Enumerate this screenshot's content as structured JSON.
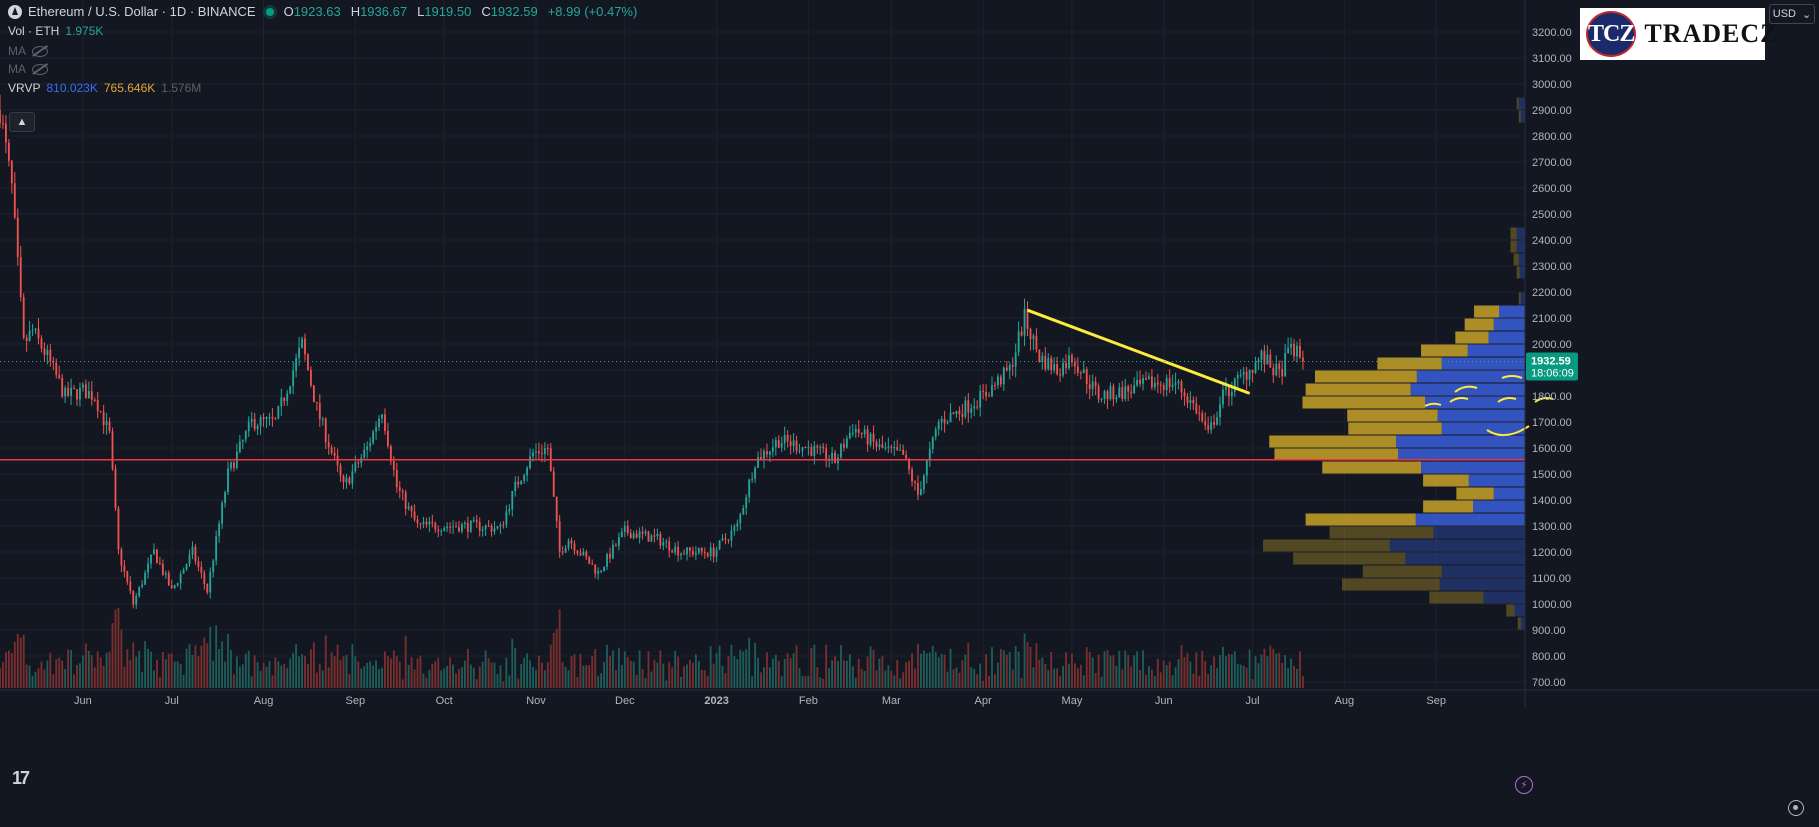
{
  "header": {
    "symbol": "Ethereum / U.S. Dollar · 1D · BINANCE",
    "o_label": "O",
    "o_value": "1923.63",
    "h_label": "H",
    "h_value": "1936.67",
    "l_label": "L",
    "l_value": "1919.50",
    "c_label": "C",
    "c_value": "1932.59",
    "change": "+8.99 (+0.47%)"
  },
  "indicators": {
    "vol_label": "Vol · ETH",
    "vol_value": "1.975K",
    "ma1_label": "MA",
    "ma2_label": "MA",
    "vrvp_label": "VRVP",
    "vrvp_up": "810.023K",
    "vrvp_down": "765.646K",
    "vrvp_total": "1.576M"
  },
  "logo": {
    "badge": "TCZ",
    "text": "TRADECZ"
  },
  "currency": "USD",
  "last_price": {
    "value": "1932.59",
    "countdown": "18:06:09"
  },
  "colors": {
    "background": "#131722",
    "grid": "#1e222d",
    "up": "#26a69a",
    "down": "#ef5350",
    "vol_up": "#1f5d58",
    "vol_down": "#7a2f2f",
    "vp_up": "#3a5fd9",
    "vp_down": "#c9a227",
    "trendline": "#ffeb3b",
    "support": "#f23645"
  },
  "icons": {
    "symbol": "ethereum-icon",
    "visibility": "eye-off-icon",
    "collapse": "chevron-up-icon",
    "brand": "tradingview-logo-icon",
    "settings": "gear-icon",
    "flash": "lightning-icon"
  },
  "chart_data": {
    "type": "candlestick",
    "ylim": [
      650,
      3250
    ],
    "yticks": [
      "700.00",
      "800.00",
      "900.00",
      "1000.00",
      "1100.00",
      "1200.00",
      "1300.00",
      "1400.00",
      "1500.00",
      "1600.00",
      "1700.00",
      "1800.00",
      "1900.00",
      "2000.00",
      "2100.00",
      "2200.00",
      "2300.00",
      "2400.00",
      "2500.00",
      "2600.00",
      "2700.00",
      "2800.00",
      "2900.00",
      "3000.00",
      "3100.00",
      "3200.00"
    ],
    "xticks": [
      {
        "label": "Jun",
        "date": "2022-06-01"
      },
      {
        "label": "Jul",
        "date": "2022-07-01"
      },
      {
        "label": "Aug",
        "date": "2022-08-01"
      },
      {
        "label": "Sep",
        "date": "2022-09-01"
      },
      {
        "label": "Oct",
        "date": "2022-10-01"
      },
      {
        "label": "Nov",
        "date": "2022-11-01"
      },
      {
        "label": "Dec",
        "date": "2022-12-01"
      },
      {
        "label": "2023",
        "date": "2023-01-01"
      },
      {
        "label": "Feb",
        "date": "2023-02-01"
      },
      {
        "label": "Mar",
        "date": "2023-03-01"
      },
      {
        "label": "Apr",
        "date": "2023-04-01"
      },
      {
        "label": "May",
        "date": "2023-05-01"
      },
      {
        "label": "Jun",
        "date": "2023-06-01"
      },
      {
        "label": "Jul",
        "date": "2023-07-01"
      },
      {
        "label": "Aug",
        "date": "2023-08-01"
      },
      {
        "label": "Sep",
        "date": "2023-09-01"
      }
    ],
    "x_range": [
      "2022-05-04",
      "2023-10-01"
    ],
    "price_keypoints": [
      [
        "2022-05-04",
        2900
      ],
      [
        "2022-05-08",
        2600
      ],
      [
        "2022-05-12",
        2000
      ],
      [
        "2022-05-15",
        2050
      ],
      [
        "2022-05-20",
        1950
      ],
      [
        "2022-05-26",
        1800
      ],
      [
        "2022-06-01",
        1820
      ],
      [
        "2022-06-05",
        1800
      ],
      [
        "2022-06-10",
        1650
      ],
      [
        "2022-06-13",
        1200
      ],
      [
        "2022-06-18",
        1000
      ],
      [
        "2022-06-25",
        1200
      ],
      [
        "2022-07-01",
        1050
      ],
      [
        "2022-07-08",
        1200
      ],
      [
        "2022-07-13",
        1050
      ],
      [
        "2022-07-20",
        1500
      ],
      [
        "2022-07-28",
        1700
      ],
      [
        "2022-08-05",
        1700
      ],
      [
        "2022-08-14",
        2000
      ],
      [
        "2022-08-19",
        1750
      ],
      [
        "2022-08-28",
        1450
      ],
      [
        "2022-09-05",
        1600
      ],
      [
        "2022-09-10",
        1750
      ],
      [
        "2022-09-15",
        1450
      ],
      [
        "2022-09-22",
        1300
      ],
      [
        "2022-10-01",
        1300
      ],
      [
        "2022-10-12",
        1300
      ],
      [
        "2022-10-20",
        1290
      ],
      [
        "2022-10-25",
        1450
      ],
      [
        "2022-10-31",
        1580
      ],
      [
        "2022-11-05",
        1600
      ],
      [
        "2022-11-09",
        1200
      ],
      [
        "2022-11-12",
        1250
      ],
      [
        "2022-11-22",
        1120
      ],
      [
        "2022-12-01",
        1280
      ],
      [
        "2022-12-12",
        1250
      ],
      [
        "2022-12-20",
        1200
      ],
      [
        "2022-12-31",
        1200
      ],
      [
        "2023-01-08",
        1300
      ],
      [
        "2023-01-14",
        1550
      ],
      [
        "2023-01-22",
        1630
      ],
      [
        "2023-02-01",
        1600
      ],
      [
        "2023-02-10",
        1550
      ],
      [
        "2023-02-16",
        1680
      ],
      [
        "2023-02-25",
        1600
      ],
      [
        "2023-03-05",
        1570
      ],
      [
        "2023-03-10",
        1420
      ],
      [
        "2023-03-17",
        1700
      ],
      [
        "2023-03-25",
        1750
      ],
      [
        "2023-04-01",
        1800
      ],
      [
        "2023-04-10",
        1900
      ],
      [
        "2023-04-15",
        2100
      ],
      [
        "2023-04-20",
        1950
      ],
      [
        "2023-04-26",
        1900
      ],
      [
        "2023-05-01",
        1950
      ],
      [
        "2023-05-10",
        1800
      ],
      [
        "2023-05-20",
        1820
      ],
      [
        "2023-05-28",
        1850
      ],
      [
        "2023-06-05",
        1850
      ],
      [
        "2023-06-12",
        1750
      ],
      [
        "2023-06-16",
        1650
      ],
      [
        "2023-06-21",
        1800
      ],
      [
        "2023-06-28",
        1880
      ],
      [
        "2023-07-04",
        1950
      ],
      [
        "2023-07-10",
        1880
      ],
      [
        "2023-07-14",
        1990
      ],
      [
        "2023-07-18",
        1932
      ]
    ],
    "trendline": [
      {
        "date": "2023-04-16",
        "price": 2130
      },
      {
        "date": "2023-06-30",
        "price": 1810
      }
    ],
    "support_level": 1555,
    "last_close": 1932.59,
    "volume_profile": [
      {
        "price": 2925,
        "up": 6,
        "down": 2
      },
      {
        "price": 2875,
        "up": 4,
        "down": 2
      },
      {
        "price": 2425,
        "up": 8,
        "down": 6
      },
      {
        "price": 2375,
        "up": 8,
        "down": 6
      },
      {
        "price": 2325,
        "up": 6,
        "down": 5
      },
      {
        "price": 2275,
        "up": 5,
        "down": 3
      },
      {
        "price": 2175,
        "up": 4,
        "down": 2
      },
      {
        "price": 2125,
        "up": 25,
        "down": 24
      },
      {
        "price": 2075,
        "up": 30,
        "down": 28
      },
      {
        "price": 2025,
        "up": 35,
        "down": 32
      },
      {
        "price": 1975,
        "up": 55,
        "down": 45
      },
      {
        "price": 1925,
        "up": 80,
        "down": 62
      },
      {
        "price": 1875,
        "up": 104,
        "down": 98
      },
      {
        "price": 1825,
        "up": 110,
        "down": 101
      },
      {
        "price": 1775,
        "up": 96,
        "down": 118
      },
      {
        "price": 1725,
        "up": 84,
        "down": 87
      },
      {
        "price": 1675,
        "up": 80,
        "down": 90
      },
      {
        "price": 1625,
        "up": 124,
        "down": 122
      },
      {
        "price": 1575,
        "up": 122,
        "down": 119
      },
      {
        "price": 1525,
        "up": 100,
        "down": 95
      },
      {
        "price": 1475,
        "up": 54,
        "down": 44
      },
      {
        "price": 1425,
        "up": 30,
        "down": 36
      },
      {
        "price": 1375,
        "up": 50,
        "down": 48
      },
      {
        "price": 1325,
        "up": 105,
        "down": 106
      },
      {
        "price": 1275,
        "up": 88,
        "down": 100
      },
      {
        "price": 1225,
        "up": 130,
        "down": 122
      },
      {
        "price": 1175,
        "up": 115,
        "down": 108
      },
      {
        "price": 1125,
        "up": 80,
        "down": 76
      },
      {
        "price": 1075,
        "up": 82,
        "down": 94
      },
      {
        "price": 1025,
        "up": 40,
        "down": 52
      },
      {
        "price": 975,
        "up": 10,
        "down": 8
      },
      {
        "price": 925,
        "up": 4,
        "down": 3
      }
    ]
  }
}
